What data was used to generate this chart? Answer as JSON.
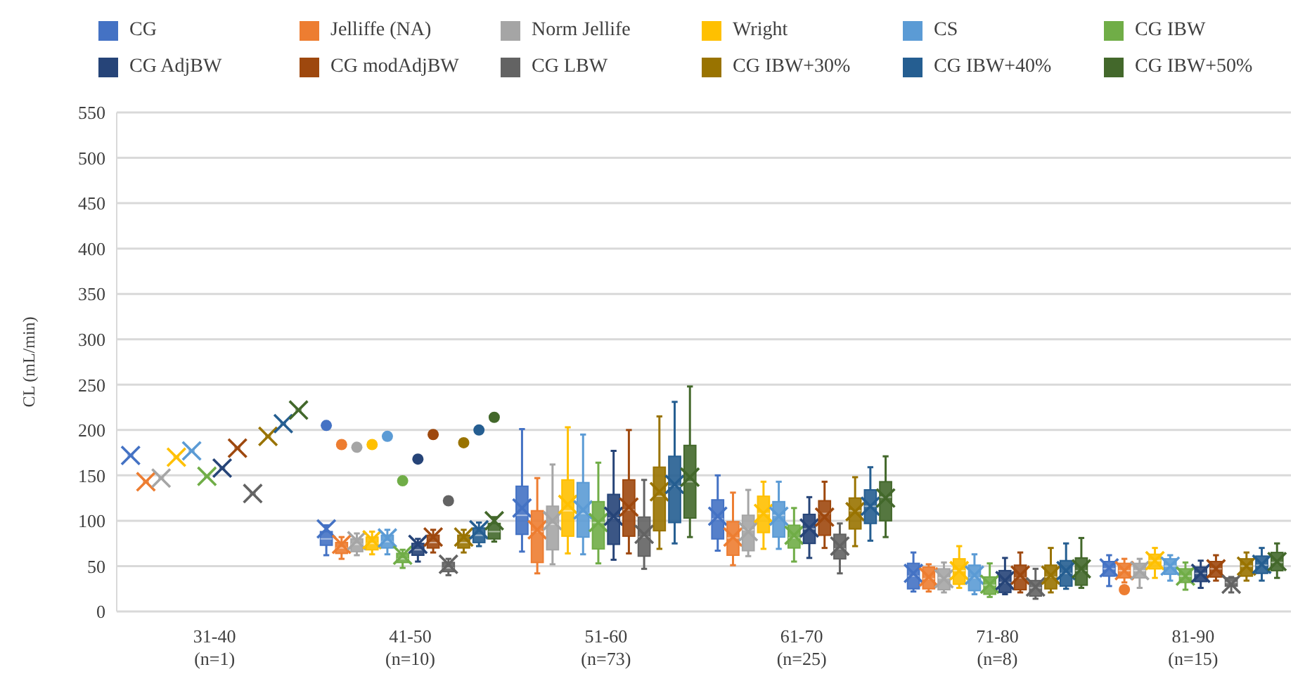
{
  "chart_data": {
    "type": "box",
    "ylabel": "CL (mL/min)",
    "categories": [
      "31-40 (n=1)",
      "41-50 (n=10)",
      "51-60 (n=73)",
      "61-70 (n=25)",
      "71-80 (n=8)",
      "81-90 (n=15)"
    ],
    "ylim": [
      0,
      550
    ],
    "yticks": [
      0,
      50,
      100,
      150,
      200,
      250,
      300,
      350,
      400,
      450,
      500,
      550
    ],
    "grid": "y",
    "legend": "top",
    "series": [
      {
        "name": "CG",
        "color": "#4472c4",
        "boxes": [
          {
            "low": 172,
            "q1": 172,
            "median": 172,
            "q3": 172,
            "high": 172,
            "mean": 172
          },
          {
            "low": 62,
            "q1": 73,
            "median": 80,
            "q3": 88,
            "high": 95,
            "mean": 91,
            "outliers": [
              205
            ]
          },
          {
            "low": 66,
            "q1": 85,
            "median": 106,
            "q3": 138,
            "high": 201,
            "mean": 114
          },
          {
            "low": 67,
            "q1": 80,
            "median": 102,
            "q3": 123,
            "high": 150,
            "mean": 105
          },
          {
            "low": 22,
            "q1": 25,
            "median": 39,
            "q3": 53,
            "high": 65,
            "mean": 42
          },
          {
            "low": 28,
            "q1": 39,
            "median": 47,
            "q3": 55,
            "high": 62,
            "mean": 48
          }
        ]
      },
      {
        "name": "Jelliffe (NA)",
        "color": "#ed7d31",
        "boxes": [
          {
            "low": 143,
            "q1": 143,
            "median": 143,
            "q3": 143,
            "high": 143,
            "mean": 143
          },
          {
            "low": 58,
            "q1": 64,
            "median": 70,
            "q3": 76,
            "high": 82,
            "mean": 74,
            "outliers": [
              184
            ]
          },
          {
            "low": 42,
            "q1": 54,
            "median": 88,
            "q3": 111,
            "high": 147,
            "mean": 90
          },
          {
            "low": 51,
            "q1": 62,
            "median": 81,
            "q3": 99,
            "high": 131,
            "mean": 82
          },
          {
            "low": 22,
            "q1": 25,
            "median": 36,
            "q3": 49,
            "high": 52,
            "mean": 38
          },
          {
            "low": 32,
            "q1": 37,
            "median": 45,
            "q3": 53,
            "high": 58,
            "mean": 45,
            "outliers": [
              24
            ]
          }
        ]
      },
      {
        "name": "Norm Jellife",
        "color": "#a5a5a5",
        "boxes": [
          {
            "low": 147,
            "q1": 147,
            "median": 147,
            "q3": 147,
            "high": 147,
            "mean": 147
          },
          {
            "low": 62,
            "q1": 66,
            "median": 74,
            "q3": 80,
            "high": 86,
            "mean": 78,
            "outliers": [
              181
            ]
          },
          {
            "low": 52,
            "q1": 68,
            "median": 96,
            "q3": 116,
            "high": 162,
            "mean": 100
          },
          {
            "low": 61,
            "q1": 67,
            "median": 90,
            "q3": 106,
            "high": 134,
            "mean": 88
          },
          {
            "low": 21,
            "q1": 24,
            "median": 37,
            "q3": 47,
            "high": 54,
            "mean": 36
          },
          {
            "low": 26,
            "q1": 37,
            "median": 45,
            "q3": 53,
            "high": 58,
            "mean": 45
          }
        ]
      },
      {
        "name": "Wright",
        "color": "#ffc000",
        "boxes": [
          {
            "low": 170,
            "q1": 170,
            "median": 170,
            "q3": 170,
            "high": 170,
            "mean": 170
          },
          {
            "low": 63,
            "q1": 68,
            "median": 75,
            "q3": 82,
            "high": 88,
            "mean": 79,
            "outliers": [
              184
            ]
          },
          {
            "low": 64,
            "q1": 83,
            "median": 111,
            "q3": 145,
            "high": 203,
            "mean": 118
          },
          {
            "low": 69,
            "q1": 87,
            "median": 108,
            "q3": 127,
            "high": 143,
            "mean": 108
          },
          {
            "low": 26,
            "q1": 30,
            "median": 45,
            "q3": 58,
            "high": 72,
            "mean": 45
          },
          {
            "low": 37,
            "q1": 47,
            "median": 56,
            "q3": 63,
            "high": 70,
            "mean": 56
          }
        ]
      },
      {
        "name": "CS",
        "color": "#5b9bd5",
        "boxes": [
          {
            "low": 177,
            "q1": 177,
            "median": 177,
            "q3": 177,
            "high": 177,
            "mean": 177
          },
          {
            "low": 63,
            "q1": 70,
            "median": 77,
            "q3": 84,
            "high": 90,
            "mean": 81,
            "outliers": [
              193
            ]
          },
          {
            "low": 63,
            "q1": 82,
            "median": 108,
            "q3": 142,
            "high": 195,
            "mean": 112
          },
          {
            "low": 69,
            "q1": 82,
            "median": 106,
            "q3": 121,
            "high": 143,
            "mean": 105
          },
          {
            "low": 19,
            "q1": 23,
            "median": 37,
            "q3": 51,
            "high": 63,
            "mean": 40
          },
          {
            "low": 34,
            "q1": 41,
            "median": 50,
            "q3": 58,
            "high": 62,
            "mean": 50
          }
        ]
      },
      {
        "name": "CG IBW",
        "color": "#70ad47",
        "boxes": [
          {
            "low": 149,
            "q1": 149,
            "median": 149,
            "q3": 149,
            "high": 149,
            "mean": 149
          },
          {
            "low": 48,
            "q1": 54,
            "median": 58,
            "q3": 64,
            "high": 68,
            "mean": 62,
            "outliers": [
              144
            ]
          },
          {
            "low": 53,
            "q1": 69,
            "median": 98,
            "q3": 121,
            "high": 164,
            "mean": 98
          },
          {
            "low": 55,
            "q1": 70,
            "median": 81,
            "q3": 95,
            "high": 114,
            "mean": 84
          },
          {
            "low": 16,
            "q1": 19,
            "median": 29,
            "q3": 38,
            "high": 53,
            "mean": 30
          },
          {
            "low": 24,
            "q1": 32,
            "median": 39,
            "q3": 47,
            "high": 54,
            "mean": 39
          }
        ]
      },
      {
        "name": "CG AdjBW",
        "color": "#264478",
        "boxes": [
          {
            "low": 158,
            "q1": 158,
            "median": 158,
            "q3": 158,
            "high": 158,
            "mean": 158
          },
          {
            "low": 55,
            "q1": 62,
            "median": 68,
            "q3": 75,
            "high": 80,
            "mean": 74,
            "outliers": [
              168
            ]
          },
          {
            "low": 57,
            "q1": 74,
            "median": 103,
            "q3": 129,
            "high": 177,
            "mean": 105
          },
          {
            "low": 59,
            "q1": 75,
            "median": 91,
            "q3": 107,
            "high": 126,
            "mean": 92
          },
          {
            "low": 19,
            "q1": 21,
            "median": 32,
            "q3": 45,
            "high": 59,
            "mean": 34
          },
          {
            "low": 26,
            "q1": 33,
            "median": 42,
            "q3": 49,
            "high": 56,
            "mean": 42
          }
        ]
      },
      {
        "name": "CG modAdjBW",
        "color": "#9e480e",
        "boxes": [
          {
            "low": 180,
            "q1": 180,
            "median": 180,
            "q3": 180,
            "high": 180,
            "mean": 180
          },
          {
            "low": 65,
            "q1": 70,
            "median": 76,
            "q3": 84,
            "high": 90,
            "mean": 82,
            "outliers": [
              195
            ]
          },
          {
            "low": 64,
            "q1": 83,
            "median": 112,
            "q3": 145,
            "high": 200,
            "mean": 115
          },
          {
            "low": 70,
            "q1": 84,
            "median": 108,
            "q3": 122,
            "high": 143,
            "mean": 104
          },
          {
            "low": 21,
            "q1": 24,
            "median": 37,
            "q3": 51,
            "high": 65,
            "mean": 40
          },
          {
            "low": 34,
            "q1": 38,
            "median": 47,
            "q3": 55,
            "high": 62,
            "mean": 47
          }
        ]
      },
      {
        "name": "CG LBW",
        "color": "#636363",
        "boxes": [
          {
            "low": 130,
            "q1": 130,
            "median": 130,
            "q3": 130,
            "high": 130,
            "mean": 130
          },
          {
            "low": 40,
            "q1": 44,
            "median": 48,
            "q3": 54,
            "high": 58,
            "mean": 52,
            "outliers": [
              122
            ]
          },
          {
            "low": 47,
            "q1": 61,
            "median": 82,
            "q3": 104,
            "high": 145,
            "mean": 85
          },
          {
            "low": 42,
            "q1": 58,
            "median": 69,
            "q3": 85,
            "high": 97,
            "mean": 72
          },
          {
            "low": 14,
            "q1": 17,
            "median": 26,
            "q3": 34,
            "high": 47,
            "mean": 27
          },
          {
            "low": 21,
            "q1": 28,
            "median": 32,
            "q3": 37,
            "high": 38,
            "mean": 30
          }
        ]
      },
      {
        "name": "CG IBW+30%",
        "color": "#997300",
        "boxes": [
          {
            "low": 193,
            "q1": 193,
            "median": 193,
            "q3": 193,
            "high": 193,
            "mean": 193
          },
          {
            "low": 65,
            "q1": 70,
            "median": 76,
            "q3": 84,
            "high": 90,
            "mean": 82,
            "outliers": [
              186
            ]
          },
          {
            "low": 69,
            "q1": 89,
            "median": 127,
            "q3": 159,
            "high": 215,
            "mean": 132
          },
          {
            "low": 72,
            "q1": 91,
            "median": 111,
            "q3": 125,
            "high": 148,
            "mean": 110
          },
          {
            "low": 21,
            "q1": 25,
            "median": 38,
            "q3": 51,
            "high": 70,
            "mean": 40
          },
          {
            "low": 34,
            "q1": 39,
            "median": 50,
            "q3": 58,
            "high": 65,
            "mean": 50
          }
        ]
      },
      {
        "name": "CG IBW+40%",
        "color": "#255e91",
        "boxes": [
          {
            "low": 207,
            "q1": 207,
            "median": 207,
            "q3": 207,
            "high": 207,
            "mean": 207
          },
          {
            "low": 72,
            "q1": 76,
            "median": 84,
            "q3": 92,
            "high": 98,
            "mean": 90,
            "outliers": [
              200
            ]
          },
          {
            "low": 75,
            "q1": 98,
            "median": 138,
            "q3": 171,
            "high": 231,
            "mean": 140
          },
          {
            "low": 78,
            "q1": 97,
            "median": 116,
            "q3": 134,
            "high": 159,
            "mean": 116
          },
          {
            "low": 25,
            "q1": 28,
            "median": 42,
            "q3": 56,
            "high": 75,
            "mean": 45
          },
          {
            "low": 34,
            "q1": 42,
            "median": 51,
            "q3": 61,
            "high": 70,
            "mean": 52
          }
        ]
      },
      {
        "name": "CG IBW+50%",
        "color": "#43682b",
        "boxes": [
          {
            "low": 222,
            "q1": 222,
            "median": 222,
            "q3": 222,
            "high": 222,
            "mean": 222
          },
          {
            "low": 77,
            "q1": 80,
            "median": 88,
            "q3": 97,
            "high": 104,
            "mean": 100,
            "outliers": [
              214
            ]
          },
          {
            "low": 82,
            "q1": 103,
            "median": 143,
            "q3": 183,
            "high": 248,
            "mean": 148
          },
          {
            "low": 82,
            "q1": 100,
            "median": 126,
            "q3": 143,
            "high": 171,
            "mean": 125
          },
          {
            "low": 26,
            "q1": 29,
            "median": 45,
            "q3": 59,
            "high": 81,
            "mean": 47
          },
          {
            "low": 37,
            "q1": 45,
            "median": 54,
            "q3": 65,
            "high": 75,
            "mean": 55
          }
        ]
      }
    ]
  }
}
